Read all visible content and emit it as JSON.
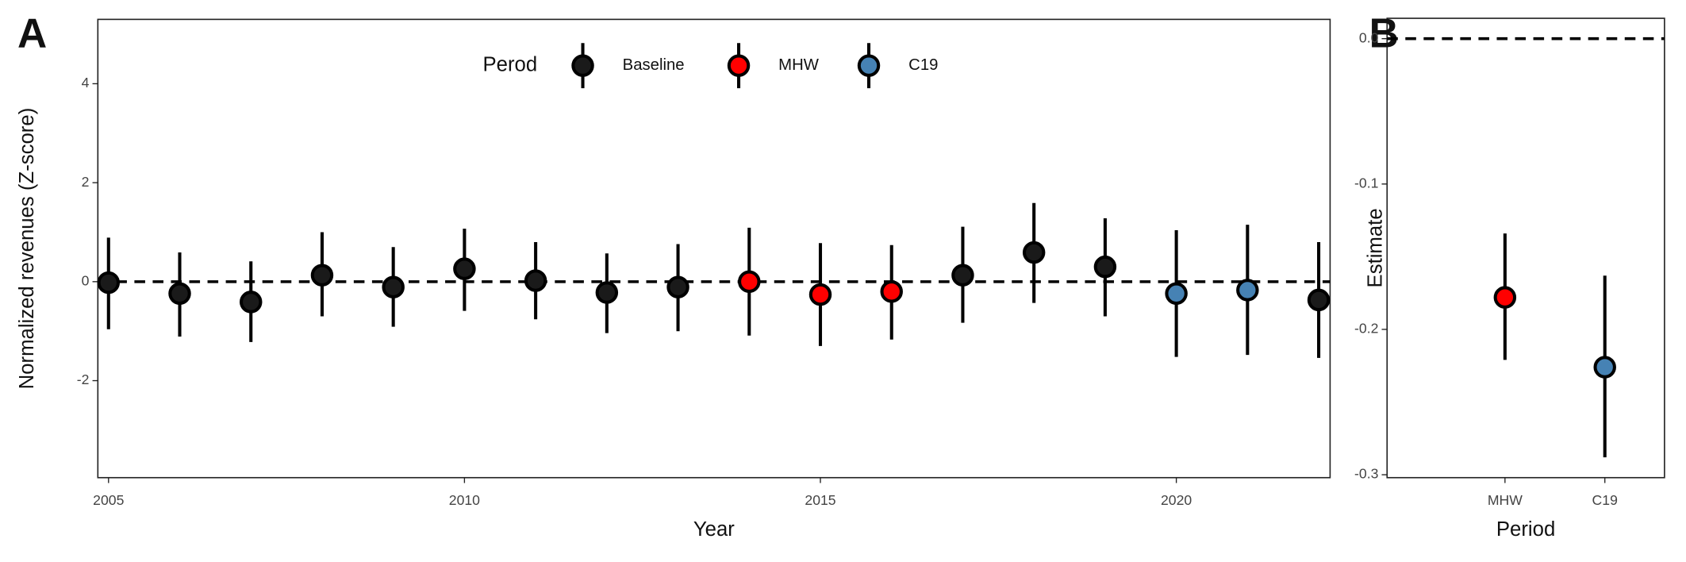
{
  "chart_data": [
    {
      "type": "errorbar",
      "panel_label": "A",
      "x_label": "Year",
      "y_label": "Normalized revenues (Z-score)",
      "legend_title": "Perod",
      "legend": "top",
      "xlim": [
        2004.85,
        2022.16
      ],
      "xticks": [
        2005,
        2010,
        2015,
        2020
      ],
      "ylim": [
        -3.96,
        5.3
      ],
      "yticks": [
        -2,
        0,
        2,
        4
      ],
      "hline": 0,
      "series": [
        {
          "name": "Baseline",
          "color": "#1a1a1a",
          "x": [
            2005,
            2006,
            2007,
            2008,
            2009,
            2010,
            2011,
            2012,
            2013,
            2017,
            2018,
            2019,
            2022
          ],
          "values": [
            -0.02,
            -0.24,
            -0.41,
            0.13,
            -0.11,
            0.26,
            0.02,
            -0.22,
            -0.11,
            0.13,
            0.59,
            0.3,
            -0.37
          ],
          "lower": [
            -0.96,
            -1.11,
            -1.22,
            -0.7,
            -0.91,
            -0.59,
            -0.76,
            -1.04,
            -1.0,
            -0.83,
            -0.43,
            -0.7,
            -1.54
          ],
          "upper": [
            0.89,
            0.59,
            0.41,
            1.0,
            0.7,
            1.07,
            0.8,
            0.57,
            0.76,
            1.11,
            1.59,
            1.28,
            0.8
          ]
        },
        {
          "name": "MHW",
          "color": "#ff0000",
          "x": [
            2014,
            2015,
            2016
          ],
          "values": [
            0,
            -0.26,
            -0.2
          ],
          "lower": [
            -1.09,
            -1.3,
            -1.17
          ],
          "upper": [
            1.09,
            0.78,
            0.74
          ]
        },
        {
          "name": "C19",
          "color": "#4682b4",
          "x": [
            2020,
            2021
          ],
          "values": [
            -0.24,
            -0.17
          ],
          "lower": [
            -1.52,
            -1.48
          ],
          "upper": [
            1.04,
            1.15
          ]
        }
      ]
    },
    {
      "type": "errorbar",
      "panel_label": "B",
      "x_label": "Period",
      "y_label": "Estimate",
      "categories": [
        "MHW",
        "C19"
      ],
      "colors": [
        "#ff0000",
        "#4682b4"
      ],
      "values": [
        -0.178,
        -0.226
      ],
      "lower": [
        -0.221,
        -0.288
      ],
      "upper": [
        -0.134,
        -0.163
      ],
      "ylim": [
        -0.302,
        0.014
      ],
      "yticks": [
        {
          "value": -0.3,
          "label": "-0.3"
        },
        {
          "value": -0.2,
          "label": "-0.2"
        },
        {
          "value": -0.1,
          "label": "-0.1"
        },
        {
          "value": 0,
          "label": "0.0"
        }
      ],
      "hline": 0
    }
  ]
}
